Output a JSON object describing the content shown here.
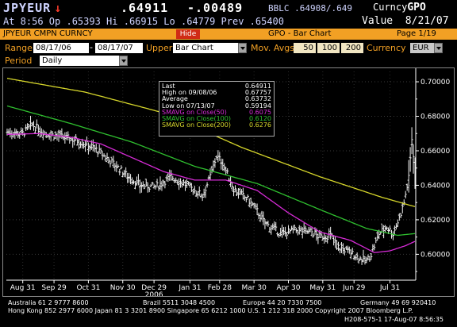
{
  "header": {
    "ticker": "JPYEUR",
    "direction_arrow": "↓",
    "last": ".64911",
    "change": "-.00489",
    "bid_ask": "BBLC .64908/.649",
    "currency_label": "Curncy",
    "function_code": "GPO",
    "line2": "At  8:56 Op .65393   Hi .66915   Lo .64779   Prev .65400",
    "value_label": "Value",
    "date": "8/21/07"
  },
  "title_bar": {
    "label": "JPYEUR CMPN CURNCY",
    "hide_button": "Hide",
    "title": "GPO - Bar Chart",
    "page": "Page 1/19"
  },
  "controls": {
    "range_label": "Range",
    "range_start": "08/17/06",
    "range_sep": "-",
    "range_end": "08/17/07",
    "upper_label": "Upper",
    "upper_value": "Bar Chart",
    "mov_avgs_label": "Mov. Avgs",
    "mov_avg_1": "50",
    "mov_avg_2": "100",
    "mov_avg_3": "200",
    "currency_label": "Currency",
    "currency_value": "EUR",
    "period_label": "Period",
    "period_value": "Daily"
  },
  "legend": {
    "rows": [
      {
        "label": "Last",
        "value": "0.64911",
        "color": "#ffffff"
      },
      {
        "label": "High on 09/08/06",
        "value": "0.67757",
        "color": "#ffffff"
      },
      {
        "label": "Average",
        "value": "0.63732",
        "color": "#ffffff"
      },
      {
        "label": "Low on 07/13/07",
        "value": "0.59194",
        "color": "#ffffff"
      },
      {
        "label": "SMAVG on Close(50)",
        "value": "0.6075",
        "color": "#d62bd6"
      },
      {
        "label": "SMAVG on Close(100)",
        "value": "0.6120",
        "color": "#2fc02f"
      },
      {
        "label": "SMAVG on Close(200)",
        "value": "0.6276",
        "color": "#d6d62b"
      }
    ]
  },
  "chart_data": {
    "type": "bar",
    "ylim": [
      0.585,
      0.706
    ],
    "yticks": [
      "0.70000",
      "0.68000",
      "0.66000",
      "0.64000",
      "0.62000",
      "0.60000"
    ],
    "ytick_values": [
      0.7,
      0.68,
      0.66,
      0.64,
      0.62,
      0.6
    ],
    "xticks": [
      "Aug 31",
      "Sep 29",
      "Oct 31",
      "Nov 30",
      "Dec 29",
      "Jan 31",
      "Feb 28",
      "Mar 30",
      "Apr 30",
      "May 31",
      "Jun 29",
      "Jul 31"
    ],
    "xtick_index": [
      10,
      30,
      52,
      74,
      94,
      117,
      136,
      158,
      180,
      202,
      222,
      245
    ],
    "year_label": "2006",
    "year_label_index": 94,
    "n_days": 262,
    "price_anchors": [
      [
        0,
        0.671
      ],
      [
        10,
        0.67
      ],
      [
        16,
        0.675
      ],
      [
        25,
        0.67
      ],
      [
        35,
        0.668
      ],
      [
        45,
        0.666
      ],
      [
        55,
        0.662
      ],
      [
        65,
        0.655
      ],
      [
        75,
        0.647
      ],
      [
        85,
        0.64
      ],
      [
        95,
        0.639
      ],
      [
        105,
        0.645
      ],
      [
        115,
        0.64
      ],
      [
        125,
        0.634
      ],
      [
        130,
        0.645
      ],
      [
        134,
        0.657
      ],
      [
        138,
        0.653
      ],
      [
        145,
        0.638
      ],
      [
        155,
        0.631
      ],
      [
        160,
        0.625
      ],
      [
        165,
        0.618
      ],
      [
        175,
        0.612
      ],
      [
        185,
        0.614
      ],
      [
        195,
        0.613
      ],
      [
        200,
        0.61
      ],
      [
        207,
        0.611
      ],
      [
        212,
        0.604
      ],
      [
        218,
        0.602
      ],
      [
        225,
        0.598
      ],
      [
        230,
        0.596
      ],
      [
        233,
        0.6
      ],
      [
        238,
        0.612
      ],
      [
        243,
        0.616
      ],
      [
        247,
        0.612
      ],
      [
        251,
        0.621
      ],
      [
        254,
        0.63
      ],
      [
        257,
        0.644
      ],
      [
        259,
        0.667
      ],
      [
        261,
        0.649
      ]
    ],
    "series": [
      {
        "name": "SMAVG on Close(50)",
        "color": "#d62bd6",
        "anchors": [
          [
            0,
            0.6695
          ],
          [
            20,
            0.67
          ],
          [
            40,
            0.668
          ],
          [
            60,
            0.664
          ],
          [
            80,
            0.656
          ],
          [
            100,
            0.648
          ],
          [
            120,
            0.643
          ],
          [
            140,
            0.643
          ],
          [
            160,
            0.637
          ],
          [
            180,
            0.624
          ],
          [
            200,
            0.613
          ],
          [
            220,
            0.608
          ],
          [
            235,
            0.601
          ],
          [
            245,
            0.602
          ],
          [
            255,
            0.605
          ],
          [
            261,
            0.6075
          ]
        ]
      },
      {
        "name": "SMAVG on Close(100)",
        "color": "#2fc02f",
        "anchors": [
          [
            0,
            0.686
          ],
          [
            40,
            0.676
          ],
          [
            80,
            0.665
          ],
          [
            120,
            0.651
          ],
          [
            160,
            0.641
          ],
          [
            200,
            0.626
          ],
          [
            230,
            0.615
          ],
          [
            250,
            0.611
          ],
          [
            261,
            0.612
          ]
        ]
      },
      {
        "name": "SMAVG on Close(200)",
        "color": "#d6d62b",
        "anchors": [
          [
            0,
            0.702
          ],
          [
            50,
            0.694
          ],
          [
            100,
            0.682
          ],
          [
            150,
            0.662
          ],
          [
            200,
            0.645
          ],
          [
            240,
            0.633
          ],
          [
            261,
            0.6276
          ]
        ]
      }
    ]
  },
  "footer": {
    "line1_a": "Australia 61 2 9777 8600",
    "line1_b": "Brazil 5511 3048 4500",
    "line1_c": "Europe 44 20 7330 7500",
    "line1_d": "Germany 49 69 920410",
    "line2": "Hong Kong 852 2977 6000 Japan 81 3 3201 8900 Singapore 65 6212 1000 U.S. 1 212 318 2000 Copyright 2007 Bloomberg L.P.",
    "line3": "H208-575-1 17-Aug-07  8:56:35"
  }
}
